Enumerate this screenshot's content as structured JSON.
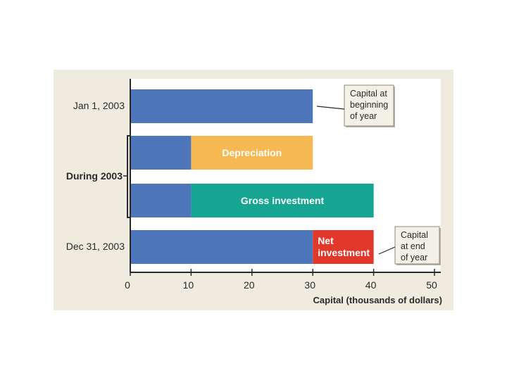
{
  "chart_data": {
    "type": "bar",
    "orientation": "horizontal",
    "stacked": true,
    "xlabel": "Capital (thousands of dollars)",
    "xlim": [
      0,
      50
    ],
    "xticks": [
      0,
      10,
      20,
      30,
      40,
      50
    ],
    "grid": false,
    "categories": [
      "Jan 1, 2003",
      "During 2003",
      "During 2003",
      "Dec 31, 2003"
    ],
    "group_label": "During 2003",
    "rows": [
      {
        "label": "Jan 1, 2003",
        "segments": [
          {
            "start": 0,
            "end": 30,
            "color": "#4e76bb",
            "label": ""
          }
        ]
      },
      {
        "label": "",
        "segments": [
          {
            "start": 0,
            "end": 10,
            "color": "#4e76bb",
            "label": ""
          },
          {
            "start": 10,
            "end": 30,
            "color": "#f5b852",
            "label": "Depreciation"
          }
        ]
      },
      {
        "label": "",
        "segments": [
          {
            "start": 0,
            "end": 10,
            "color": "#4e76bb",
            "label": ""
          },
          {
            "start": 10,
            "end": 40,
            "color": "#17a593",
            "label": "Gross investment"
          }
        ]
      },
      {
        "label": "Dec 31, 2003",
        "segments": [
          {
            "start": 0,
            "end": 30,
            "color": "#4e76bb",
            "label": ""
          },
          {
            "start": 30,
            "end": 40,
            "color": "#e2372b",
            "label": "Net investment"
          }
        ]
      }
    ],
    "annotations": [
      {
        "text": "Capital at beginning of year",
        "lines": [
          "Capital at",
          "beginning",
          "of year"
        ]
      },
      {
        "text": "Capital at end of year",
        "lines": [
          "Capital",
          "at end",
          "of year"
        ]
      }
    ]
  },
  "colors": {
    "background": "#efebdf",
    "plot": "#ffffff",
    "capital": "#4e76bb",
    "depreciation": "#f5b852",
    "gross_investment": "#17a593",
    "net_investment": "#e2372b"
  }
}
